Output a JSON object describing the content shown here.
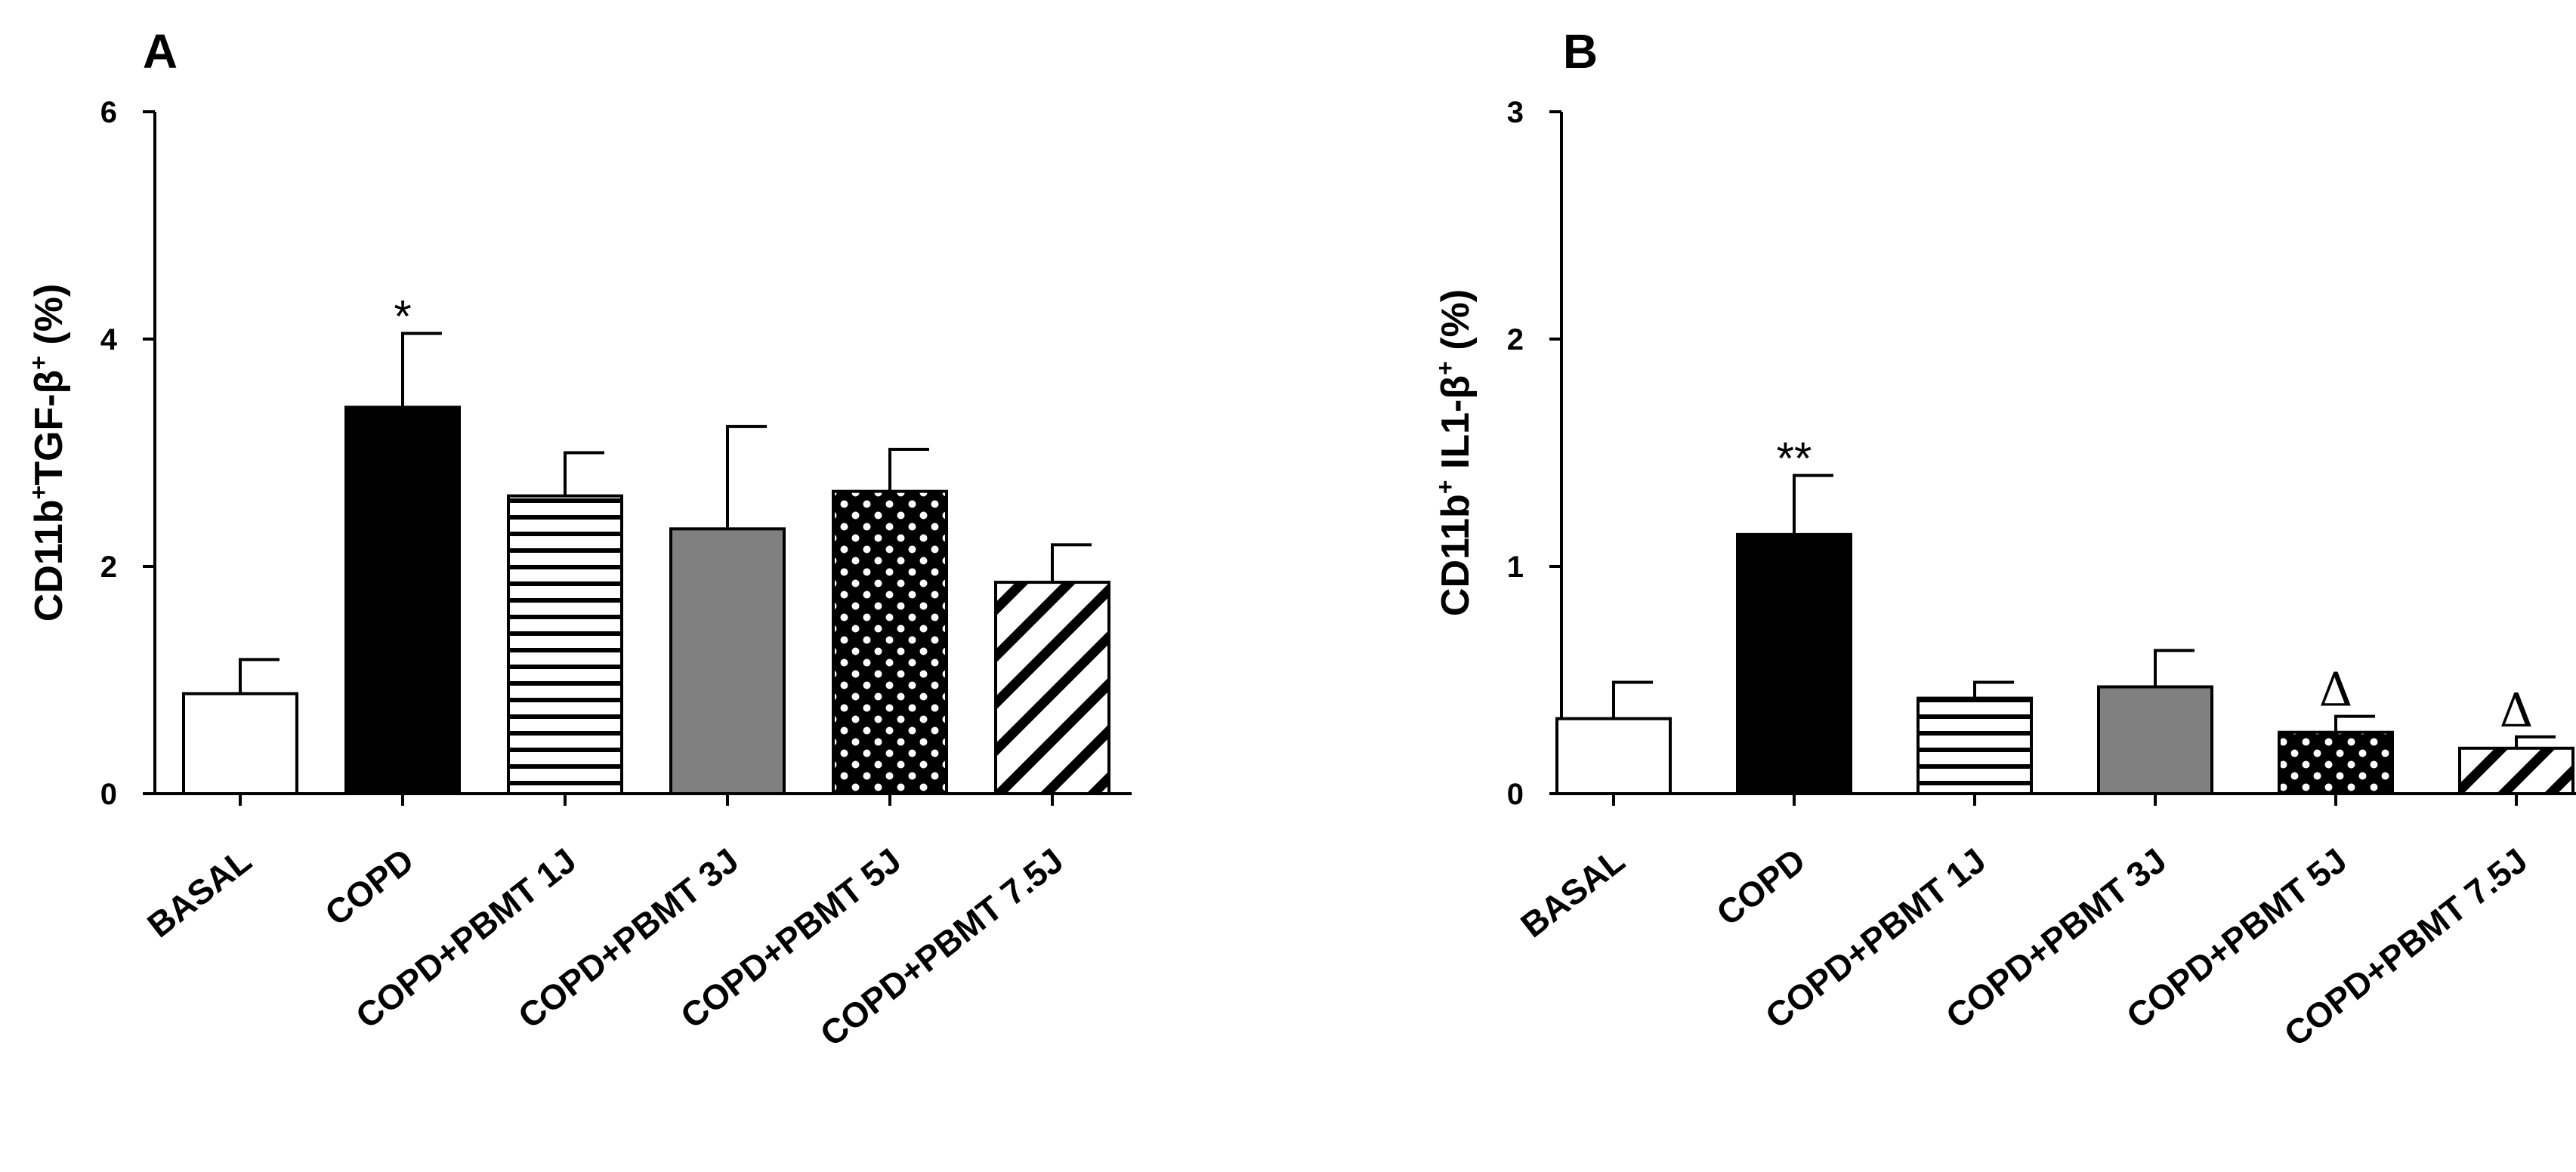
{
  "chart_data": [
    {
      "type": "bar",
      "panel": "A",
      "ylabel": "CD11b+TGF-β+ (%)",
      "ylabel_parts": {
        "a": "CD11b",
        "sup1": "+",
        "b": "TGF-β",
        "sup2": "+",
        "c": " (%)"
      },
      "ylim": [
        0,
        6
      ],
      "yticks": [
        0,
        2,
        4,
        6
      ],
      "categories": [
        "BASAL",
        "COPD",
        "COPD+PBMT 1J",
        "COPD+PBMT 3J",
        "COPD+PBMT 5J",
        "COPD+PBMT 7.5J"
      ],
      "values": [
        0.88,
        3.4,
        2.62,
        2.33,
        2.66,
        1.86
      ],
      "errors": [
        0.3,
        0.65,
        0.38,
        0.9,
        0.37,
        0.33
      ],
      "fills": [
        "white",
        "black",
        "hlines",
        "gray",
        "checker",
        "diag"
      ],
      "annotations": [
        "",
        "*",
        "",
        "",
        "",
        ""
      ]
    },
    {
      "type": "bar",
      "panel": "B",
      "ylabel": "CD11b+ IL1-β+ (%)",
      "ylabel_parts": {
        "a": "CD11b",
        "sup1": "+",
        "b": " IL1-β",
        "sup2": "+",
        "c": " (%)"
      },
      "ylim": [
        0,
        3
      ],
      "yticks": [
        0,
        1,
        2,
        3
      ],
      "categories": [
        "BASAL",
        "COPD",
        "COPD+PBMT 1J",
        "COPD+PBMT 3J",
        "COPD+PBMT 5J",
        "COPD+PBMT 7.5J"
      ],
      "values": [
        0.33,
        1.14,
        0.42,
        0.47,
        0.27,
        0.2
      ],
      "errors": [
        0.16,
        0.26,
        0.07,
        0.16,
        0.07,
        0.05
      ],
      "fills": [
        "white",
        "black",
        "hlines",
        "gray",
        "checker",
        "diag"
      ],
      "annotations": [
        "",
        "**",
        "",
        "",
        "Δ",
        "Δ"
      ]
    }
  ]
}
